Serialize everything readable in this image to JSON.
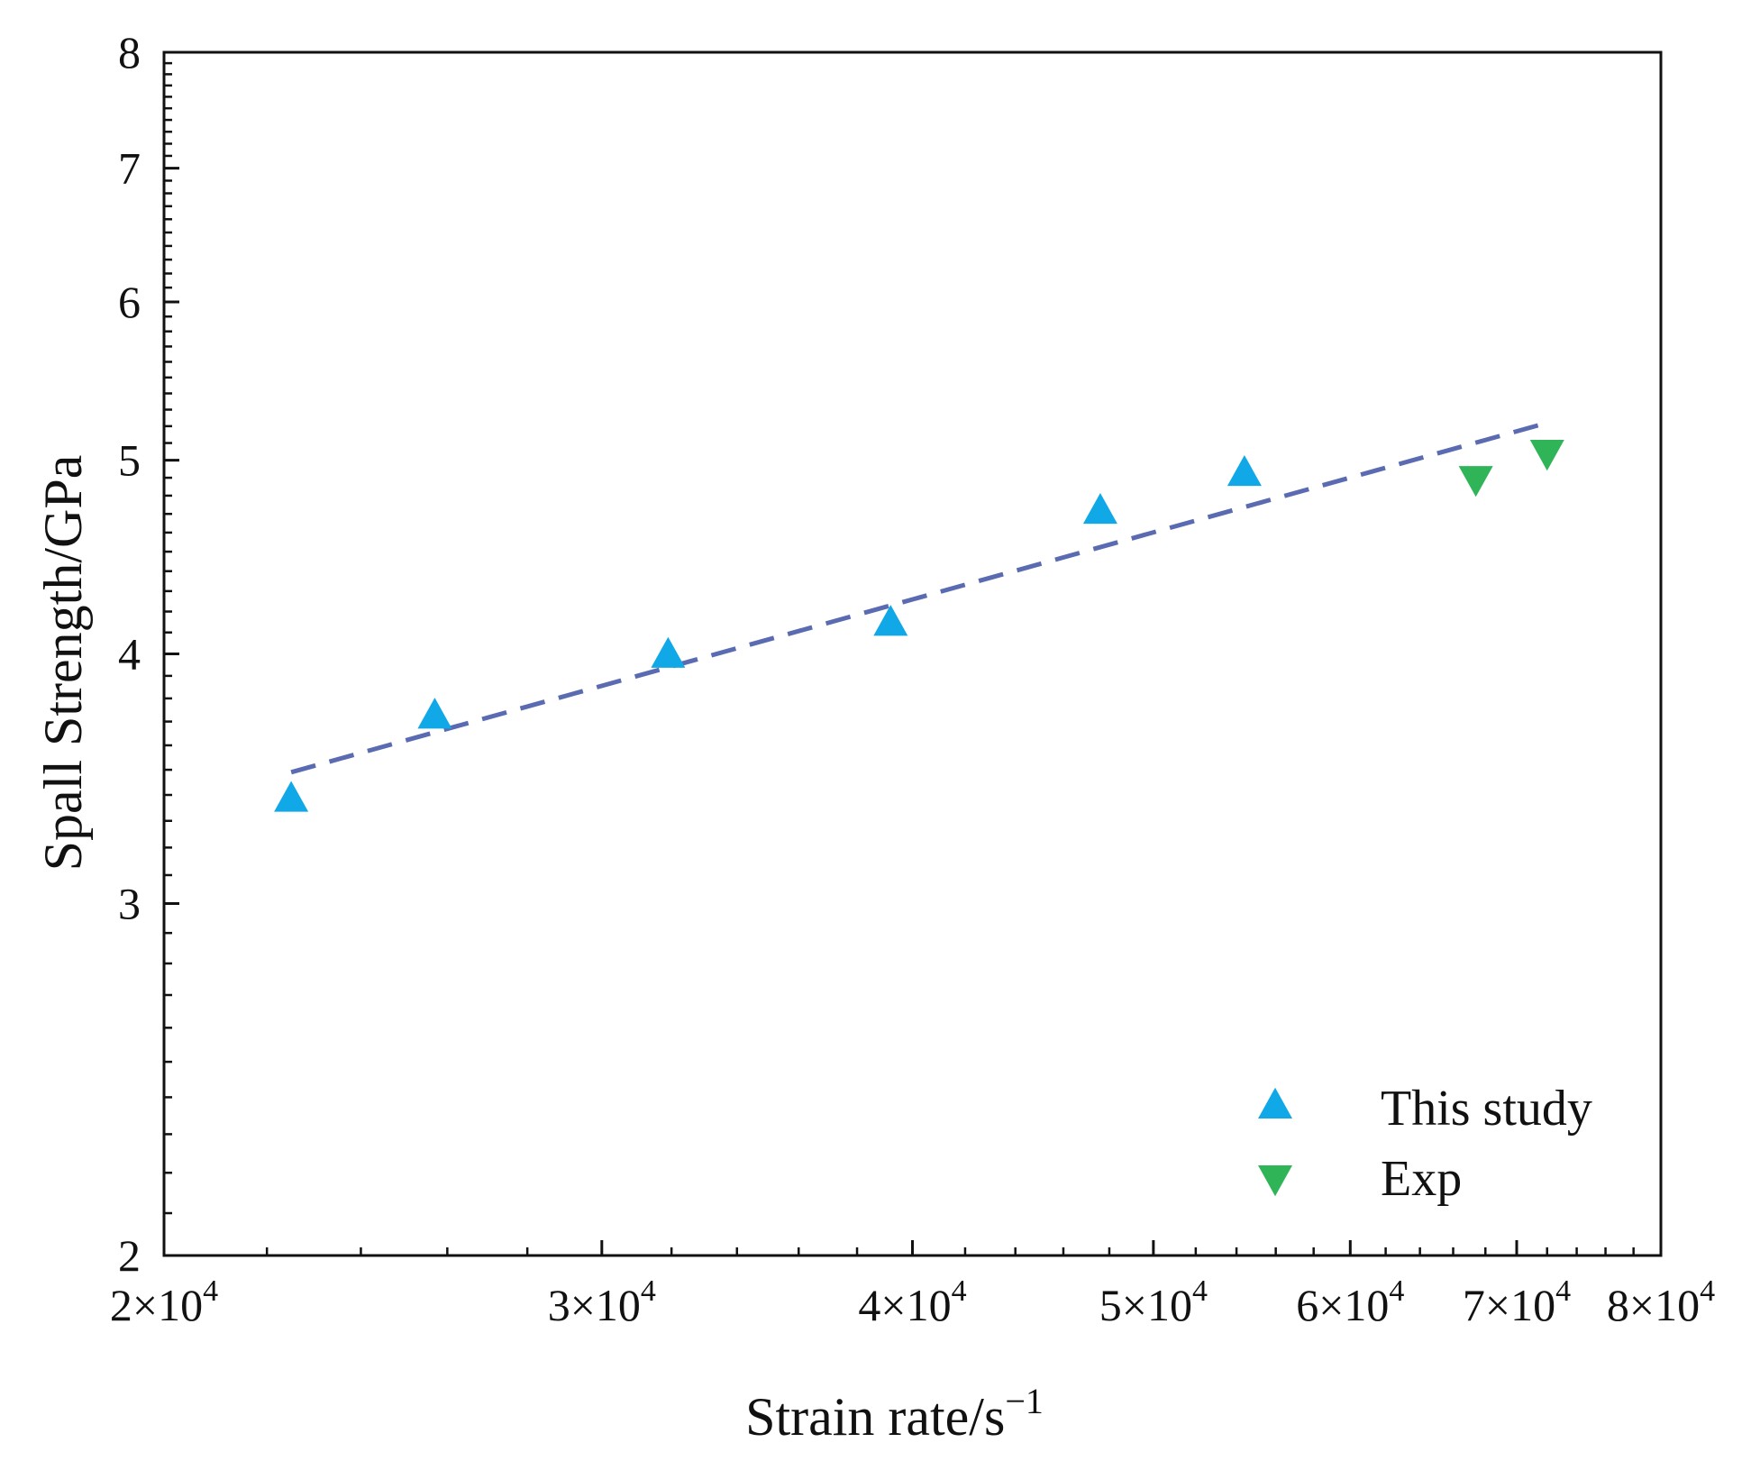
{
  "chart_data": {
    "type": "scatter",
    "title": "",
    "xlabel": "Strain rate/s",
    "xlabel_superscript": "−1",
    "ylabel": "Spall Strength/GPa",
    "xscale": "log",
    "yscale": "log",
    "xlim": [
      20000,
      80000
    ],
    "ylim": [
      2,
      8
    ],
    "grid": false,
    "legend_position": "bottom-right",
    "x_ticks": [
      {
        "value": 20000,
        "label": "2×10",
        "exp": "4"
      },
      {
        "value": 30000,
        "label": "3×10",
        "exp": "4"
      },
      {
        "value": 40000,
        "label": "4×10",
        "exp": "4"
      },
      {
        "value": 50000,
        "label": "5×10",
        "exp": "4"
      },
      {
        "value": 60000,
        "label": "6×10",
        "exp": "4"
      },
      {
        "value": 70000,
        "label": "7×10",
        "exp": "4"
      },
      {
        "value": 80000,
        "label": "8×10",
        "exp": "4"
      }
    ],
    "y_ticks": [
      {
        "value": 2,
        "label": "2"
      },
      {
        "value": 3,
        "label": "3"
      },
      {
        "value": 4,
        "label": "4"
      },
      {
        "value": 5,
        "label": "5"
      },
      {
        "value": 6,
        "label": "6"
      },
      {
        "value": 7,
        "label": "7"
      },
      {
        "value": 8,
        "label": "8"
      }
    ],
    "series": [
      {
        "name": "This study",
        "marker": "triangle-up",
        "color": "#10a8e6",
        "x": [
          22500,
          25700,
          31900,
          39200,
          47600,
          54400
        ],
        "y": [
          3.38,
          3.72,
          3.99,
          4.14,
          4.71,
          4.92
        ]
      },
      {
        "name": "Exp",
        "marker": "triangle-down",
        "color": "#2fb558",
        "x": [
          67400,
          72000
        ],
        "y": [
          4.9,
          5.05
        ]
      }
    ],
    "fit_line": {
      "name": "fit",
      "style": "dashed",
      "color": "#5a6bb2",
      "x": [
        22500,
        72000
      ],
      "y": [
        3.49,
        5.22
      ]
    }
  }
}
